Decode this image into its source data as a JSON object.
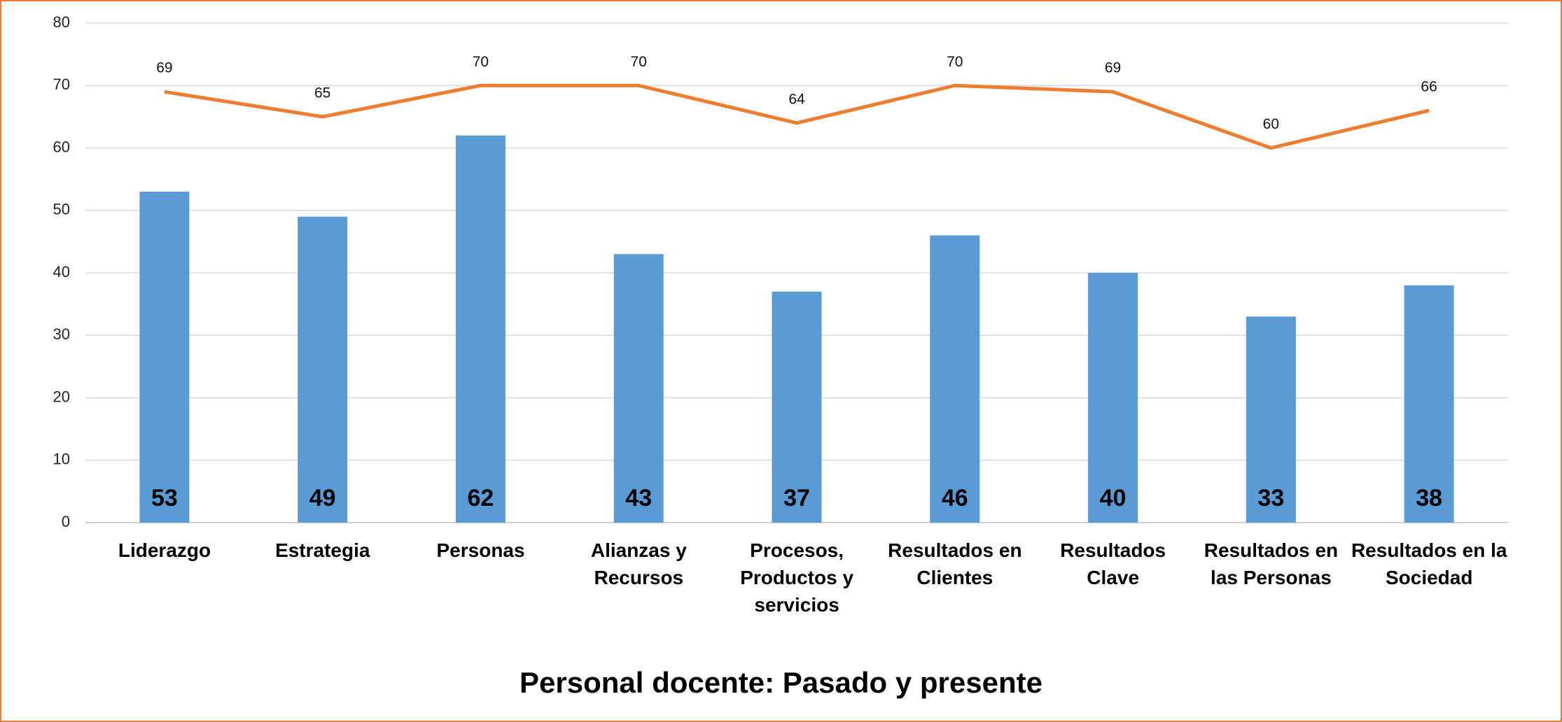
{
  "chart_data": {
    "type": "bar",
    "title": "Personal docente: Pasado y presente",
    "categories": [
      "Liderazgo",
      "Estrategia",
      "Personas",
      "Alianzas y Recursos",
      "Procesos, Productos y servicios",
      "Resultados en Clientes",
      "Resultados Clave",
      "Resultados en las Personas",
      "Resultados en la Sociedad"
    ],
    "series": [
      {
        "type": "bar",
        "color": "#5b9bd5",
        "values": [
          53,
          49,
          62,
          43,
          37,
          46,
          40,
          33,
          38
        ]
      },
      {
        "type": "line",
        "color": "#ed7d31",
        "values": [
          69,
          65,
          70,
          70,
          64,
          70,
          69,
          60,
          66
        ]
      }
    ],
    "ylim": [
      0,
      80
    ],
    "yticks": [
      0,
      10,
      20,
      30,
      40,
      50,
      60,
      70,
      80
    ],
    "grid": true
  }
}
